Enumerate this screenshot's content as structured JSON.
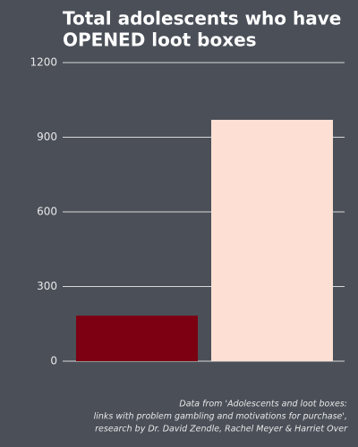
{
  "chart_data": {
    "type": "bar",
    "title": [
      "Total adolescents who have",
      "OPENED loot boxes"
    ],
    "categories": [
      null,
      null
    ],
    "values": [
      183,
      970
    ],
    "colors": [
      "#7d0012",
      "#fde0d3"
    ],
    "ylim": [
      0,
      1200
    ],
    "yticks": [
      0,
      300,
      600,
      900,
      1200
    ],
    "grid": true,
    "note": [
      "Data from 'Adolescents and loot boxes:",
      "links with problem gambling and motivations for purchase',",
      "research by Dr. David Zendle, Rachel Meyer & Harriet Over"
    ]
  }
}
